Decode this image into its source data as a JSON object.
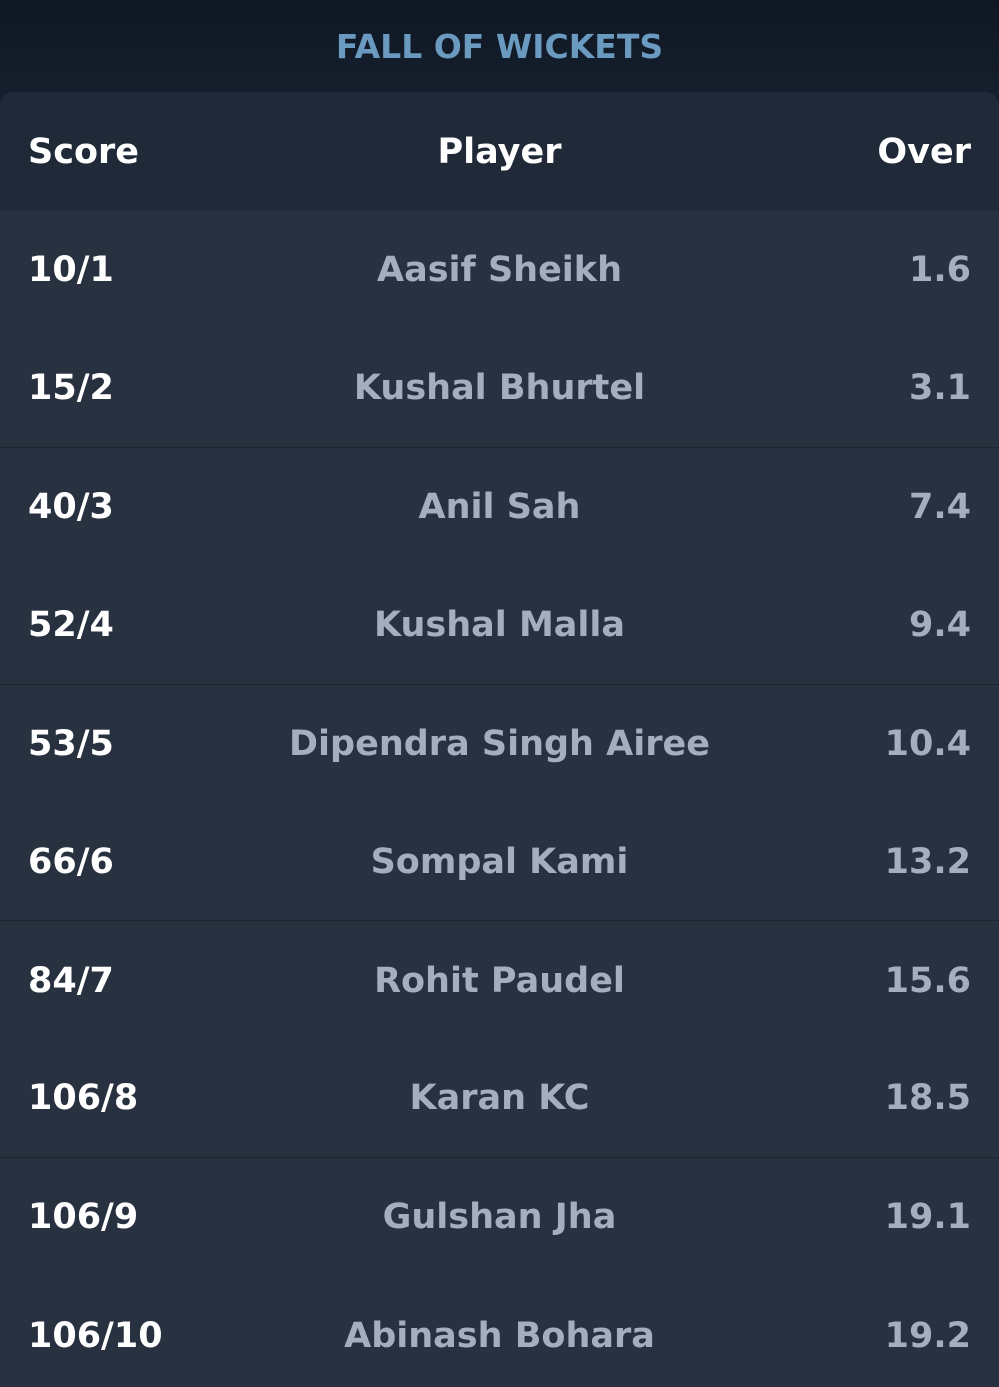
{
  "title": "FALL OF WICKETS",
  "columns": {
    "score": "Score",
    "player": "Player",
    "over": "Over"
  },
  "rows": [
    {
      "score": "10/1",
      "player": "Aasif Sheikh",
      "over": "1.6"
    },
    {
      "score": "15/2",
      "player": "Kushal Bhurtel",
      "over": "3.1"
    },
    {
      "score": "40/3",
      "player": "Anil Sah",
      "over": "7.4"
    },
    {
      "score": "52/4",
      "player": "Kushal Malla",
      "over": "9.4"
    },
    {
      "score": "53/5",
      "player": "Dipendra Singh Airee",
      "over": "10.4"
    },
    {
      "score": "66/6",
      "player": "Sompal Kami",
      "over": "13.2"
    },
    {
      "score": "84/7",
      "player": "Rohit Paudel",
      "over": "15.6"
    },
    {
      "score": "106/8",
      "player": "Karan KC",
      "over": "18.5"
    },
    {
      "score": "106/9",
      "player": "Gulshan Jha",
      "over": "19.1"
    },
    {
      "score": "106/10",
      "player": "Abinash Bohara",
      "over": "19.2"
    }
  ]
}
